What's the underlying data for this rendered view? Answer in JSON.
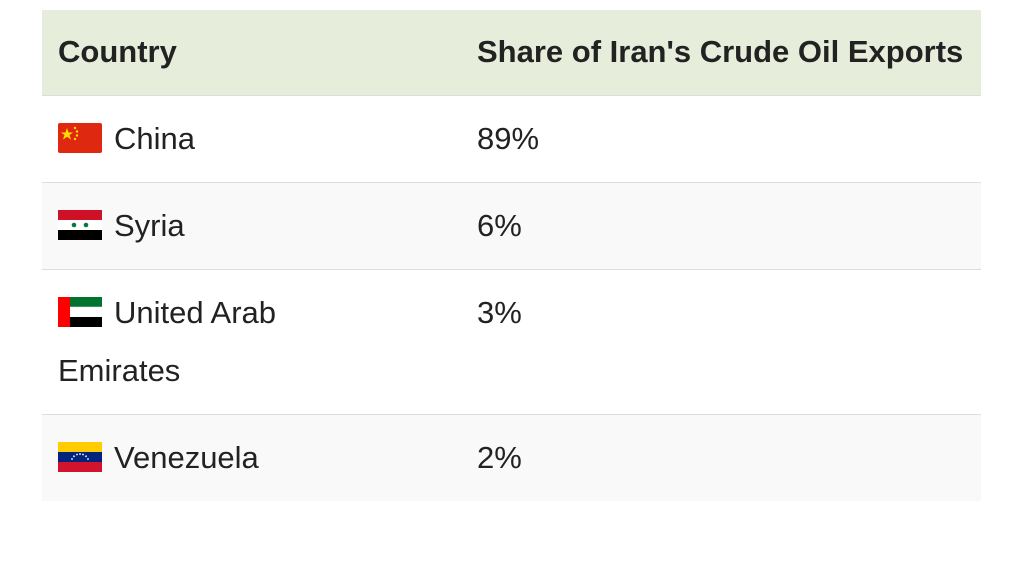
{
  "table": {
    "header": [
      "Country",
      "Share of Iran's Crude Oil Exports"
    ],
    "rows": [
      [
        "China",
        "89%"
      ],
      [
        "Syria",
        "6%"
      ],
      [
        "United Arab Emirates",
        "3%"
      ],
      [
        "Venezuela",
        "2%"
      ]
    ]
  }
}
